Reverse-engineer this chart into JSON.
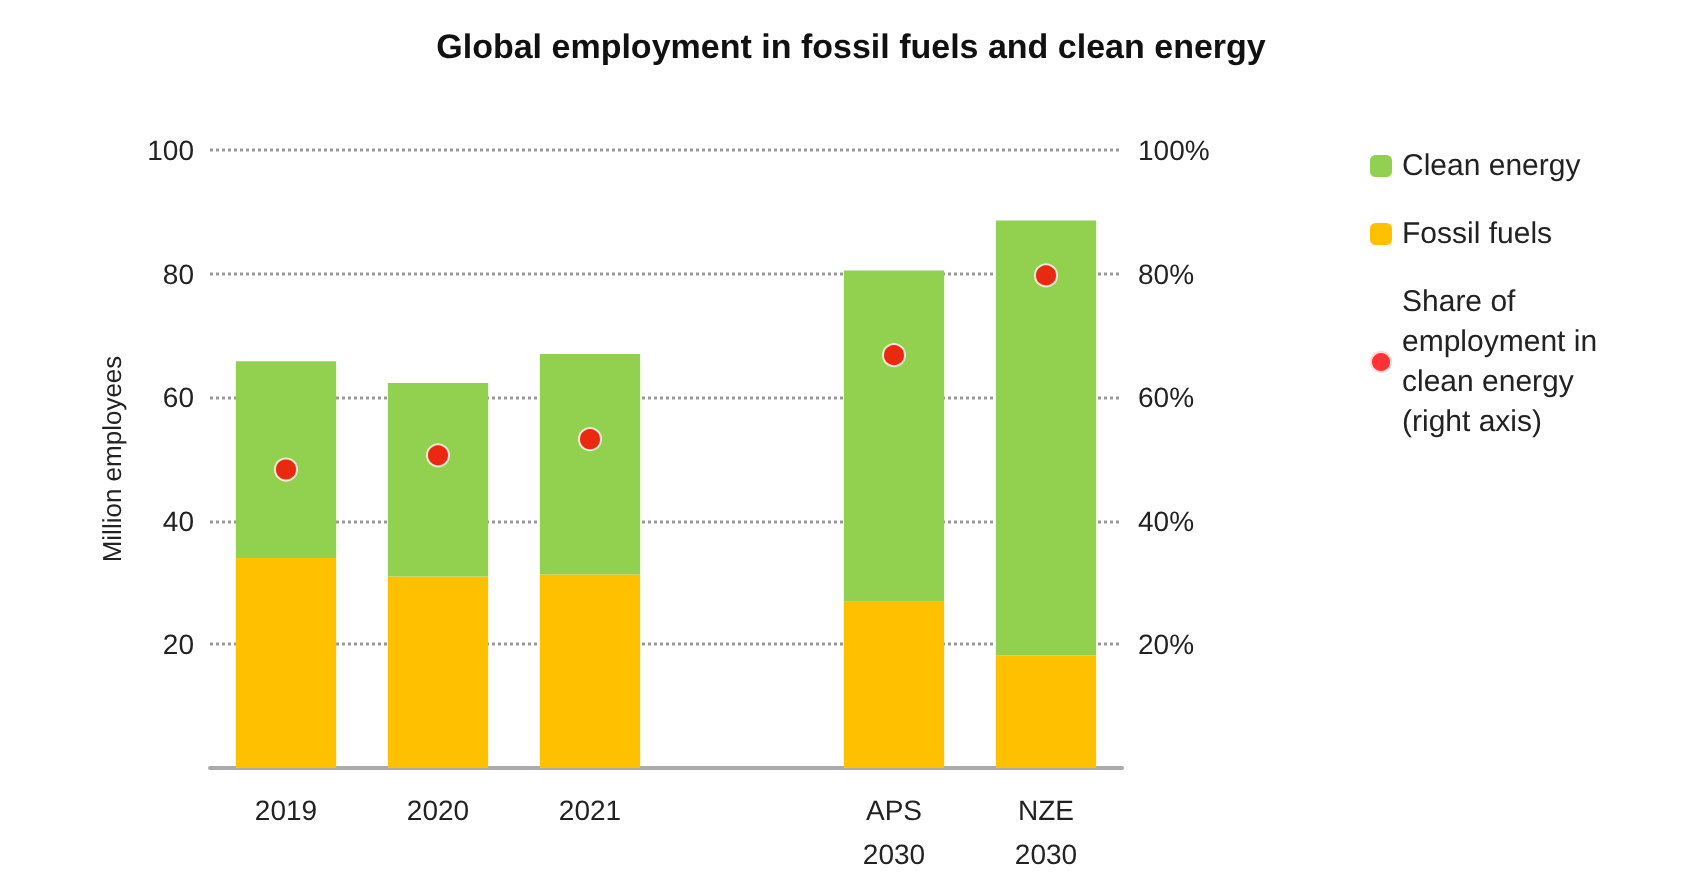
{
  "chart_data": {
    "type": "bar",
    "title": "Global employment in fossil fuels and clean energy",
    "ylabel": "Million employees",
    "categories": [
      "2019",
      "2020",
      "2021",
      null,
      "APS\n2030",
      "NZE\n2030"
    ],
    "stacked": true,
    "series": [
      {
        "name": "Fossil fuels",
        "color": "#ffc000",
        "values": [
          34,
          31,
          31.3,
          null,
          26.9,
          18.2
        ]
      },
      {
        "name": "Clean energy",
        "color": "#92d050",
        "values": [
          31.8,
          31.3,
          35.7,
          null,
          53.6,
          70.4
        ]
      },
      {
        "name": "Share of employment in clean energy (right axis)",
        "type": "scatter",
        "axis": "y2",
        "color": "#ff0000",
        "marker": "circle",
        "values": [
          48.3,
          50.6,
          53.2,
          null,
          66.8,
          79.7
        ]
      }
    ],
    "ylim": [
      0,
      100
    ],
    "yticks": [
      {
        "value": 0,
        "label": null
      },
      20,
      40,
      60,
      80,
      100
    ],
    "y2lim": [
      0,
      100
    ],
    "y2ticks": [
      {
        "value": 0,
        "label": null
      },
      {
        "value": 20,
        "label": "20%"
      },
      {
        "value": 40,
        "label": "40%"
      },
      {
        "value": 60,
        "label": "60%"
      },
      {
        "value": 80,
        "label": "80%"
      },
      {
        "value": 100,
        "label": "100%"
      }
    ],
    "grid": "y",
    "legend": "right"
  }
}
